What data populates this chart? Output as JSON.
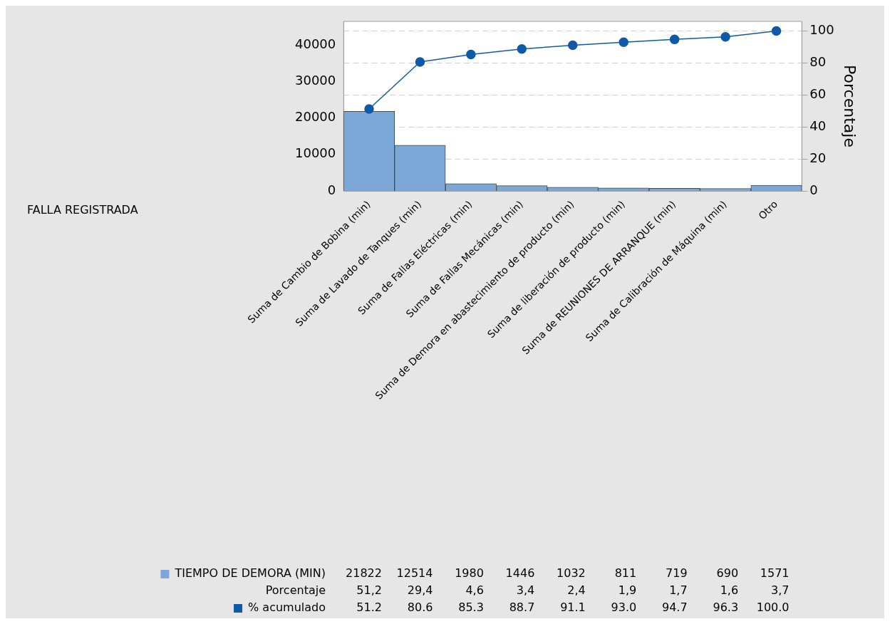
{
  "chart_data": {
    "type": "bar",
    "y2label": "Porcentaje",
    "categories": [
      "Suma de Cambio de Bobina (min)",
      "Suma de Lavado de Tanques (min)",
      "Suma de Fallas Eléctricas (min)",
      "Suma de Fallas Mecánicas (min)",
      "Suma de Demora en abastecimiento de producto (min)",
      "Suma de liberación de producto (min)",
      "Suma de REUNIONES DE ARRANQUE (min)",
      "Suma de Calibración de Máquina (min)",
      "Otro"
    ],
    "series": [
      {
        "name": "TIEMPO DE DEMORA (MIN)",
        "color": "#7ba7d9",
        "values": [
          21822,
          12514,
          1980,
          1446,
          1032,
          811,
          719,
          690,
          1571
        ]
      },
      {
        "name": "% acumulado",
        "type": "line",
        "axis": "y2",
        "color": "#0f5aa8",
        "values": [
          51.2,
          80.6,
          85.3,
          88.7,
          91.1,
          93.0,
          94.7,
          96.3,
          100.0
        ],
        "value_labels": [
          "51.2",
          "80.6",
          "85.3",
          "88.7",
          "91.1",
          "93.0",
          "94.7",
          "96.3",
          "100.0"
        ]
      }
    ],
    "data_labels": true,
    "annotations": [
      "FALLA REGISTRADA",
      "Porcentaje",
      "51,2",
      "29,4",
      "4,6",
      "3,4",
      "2,4",
      "1,9",
      "1,7",
      "1,6",
      "3,7"
    ],
    "ylim": [
      0,
      46500
    ],
    "yticks": [
      0,
      10000,
      20000,
      30000,
      40000
    ],
    "y2lim": [
      0,
      106
    ],
    "y2ticks": [
      0,
      20,
      40,
      60,
      80,
      100
    ],
    "grid": "y2",
    "marker": "circle",
    "legend": "bottom left"
  }
}
